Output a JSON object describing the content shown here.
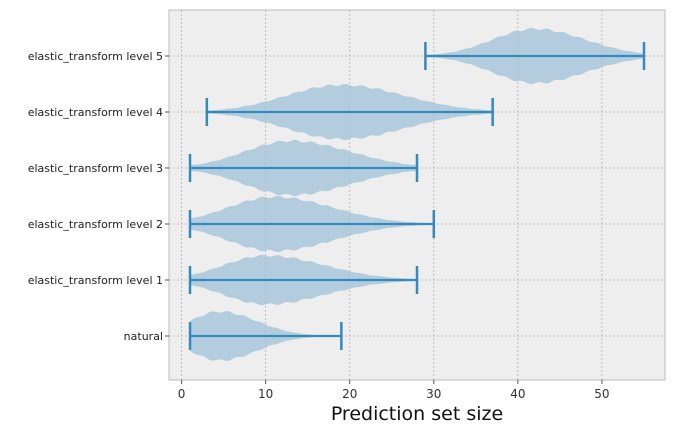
{
  "chart_data": {
    "type": "violin",
    "orientation": "horizontal",
    "xlabel": "Prediction set size",
    "xlim": [
      -1.5,
      57.5
    ],
    "xticks": [
      0,
      10,
      20,
      30,
      40,
      50
    ],
    "grid": true,
    "categories": [
      "natural",
      "elastic_transform level 1",
      "elastic_transform level 2",
      "elastic_transform level 3",
      "elastic_transform level 4",
      "elastic_transform level 5"
    ],
    "series": [
      {
        "category": "natural",
        "min": 1,
        "max": 19,
        "mode": 4.5,
        "spread_low": 3.5,
        "spread_high": 4.5,
        "peak_width": 0.45
      },
      {
        "category": "elastic_transform level 1",
        "min": 1,
        "max": 28,
        "mode": 10,
        "spread_low": 5,
        "spread_high": 7,
        "peak_width": 0.45
      },
      {
        "category": "elastic_transform level 2",
        "min": 1,
        "max": 30,
        "mode": 11,
        "spread_low": 5.5,
        "spread_high": 7,
        "peak_width": 0.5
      },
      {
        "category": "elastic_transform level 3",
        "min": 1,
        "max": 28,
        "mode": 13,
        "spread_low": 5.5,
        "spread_high": 7,
        "peak_width": 0.5
      },
      {
        "category": "elastic_transform level 4",
        "min": 3,
        "max": 37,
        "mode": 19,
        "spread_low": 6.5,
        "spread_high": 7.5,
        "peak_width": 0.5
      },
      {
        "category": "elastic_transform level 5",
        "min": 29,
        "max": 55,
        "mode": 42,
        "spread_low": 5,
        "spread_high": 6,
        "peak_width": 0.5
      }
    ],
    "colors": {
      "body": "#9fc1d9",
      "line": "#348abd",
      "background": "#eeeeee",
      "grid": "#b2b2b2"
    }
  }
}
